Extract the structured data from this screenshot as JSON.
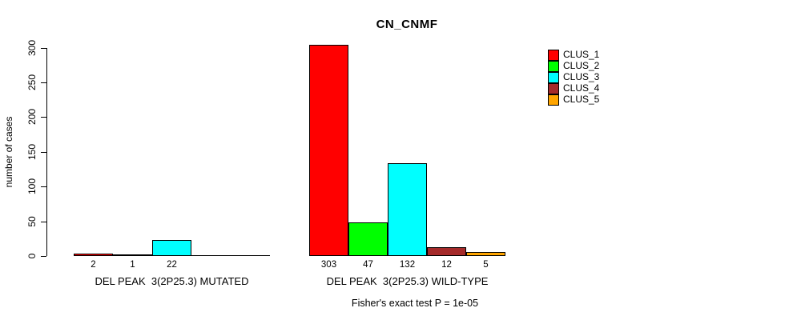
{
  "title": "CN_CNMF",
  "chart_data": {
    "type": "bar",
    "title": "CN_CNMF",
    "ylabel": "number of cases",
    "xlabel": "",
    "ylim": [
      0,
      303
    ],
    "yticks": [
      0,
      50,
      100,
      150,
      200,
      250,
      300
    ],
    "grid": false,
    "legend_position": "top-right",
    "legend": [
      {
        "label": "CLUS_1",
        "color": "#FF0000"
      },
      {
        "label": "CLUS_2",
        "color": "#00FF00"
      },
      {
        "label": "CLUS_3",
        "color": "#00FFFF"
      },
      {
        "label": "CLUS_4",
        "color": "#A52A2A"
      },
      {
        "label": "CLUS_5",
        "color": "#FFA500"
      }
    ],
    "groups": [
      {
        "label": "DEL PEAK  3(2P25.3) MUTATED",
        "bars": [
          {
            "cluster": "CLUS_1",
            "value": 2,
            "value_label": "2"
          },
          {
            "cluster": "CLUS_2",
            "value": 1,
            "value_label": "1"
          },
          {
            "cluster": "CLUS_3",
            "value": 22,
            "value_label": "22"
          },
          {
            "cluster": "CLUS_4",
            "value": 0,
            "value_label": ""
          },
          {
            "cluster": "CLUS_5",
            "value": 0,
            "value_label": ""
          }
        ]
      },
      {
        "label": "DEL PEAK  3(2P25.3) WILD-TYPE",
        "bars": [
          {
            "cluster": "CLUS_1",
            "value": 303,
            "value_label": "303"
          },
          {
            "cluster": "CLUS_2",
            "value": 47,
            "value_label": "47"
          },
          {
            "cluster": "CLUS_3",
            "value": 132,
            "value_label": "132"
          },
          {
            "cluster": "CLUS_4",
            "value": 12,
            "value_label": "12"
          },
          {
            "cluster": "CLUS_5",
            "value": 5,
            "value_label": "5"
          }
        ]
      }
    ],
    "annotation": "Fisher's exact test P = 1e-05"
  }
}
